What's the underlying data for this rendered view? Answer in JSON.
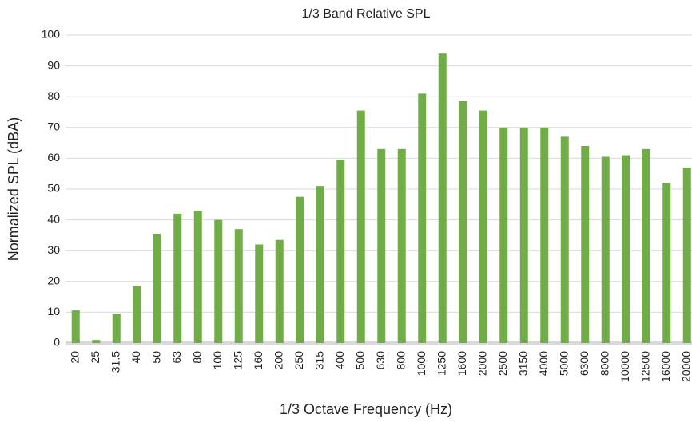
{
  "chart_data": {
    "type": "bar",
    "title": "1/3 Band Relative SPL",
    "x_label": "1/3 Octave Frequency (Hz)",
    "y_label": "Normalized SPL (dBA)",
    "categories": [
      "20",
      "25",
      "31.5",
      "40",
      "50",
      "63",
      "80",
      "100",
      "125",
      "160",
      "200",
      "250",
      "315",
      "400",
      "500",
      "630",
      "800",
      "1000",
      "1250",
      "1600",
      "2000",
      "2500",
      "3150",
      "4000",
      "5000",
      "6300",
      "8000",
      "10000",
      "12500",
      "16000",
      "20000"
    ],
    "values": [
      10.6,
      1,
      9.5,
      18.5,
      35.5,
      42,
      43,
      40,
      37,
      32,
      33.5,
      47.5,
      51,
      59.5,
      75.5,
      63,
      63,
      81,
      94,
      78.5,
      75.5,
      70,
      70,
      70,
      67,
      64,
      60.5,
      61,
      63,
      52,
      57
    ],
    "color": "#70ad47",
    "ylim": [
      0,
      100
    ],
    "yticks": [
      0,
      10,
      20,
      30,
      40,
      50,
      60,
      70,
      80,
      90,
      100
    ],
    "grid": true
  }
}
